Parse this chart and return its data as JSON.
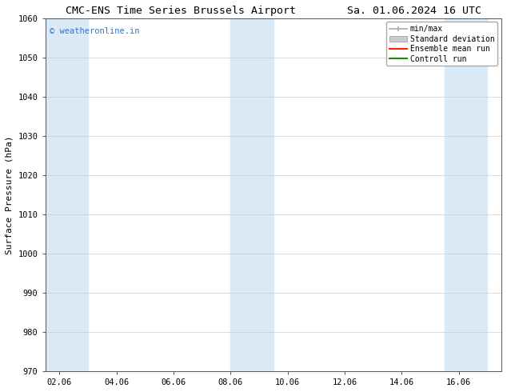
{
  "title_left": "CMC-ENS Time Series Brussels Airport",
  "title_right": "Sa. 01.06.2024 16 UTC",
  "ylabel": "Surface Pressure (hPa)",
  "ylim": [
    970,
    1060
  ],
  "yticks": [
    970,
    980,
    990,
    1000,
    1010,
    1020,
    1030,
    1040,
    1050,
    1060
  ],
  "xtick_labels": [
    "02.06",
    "04.06",
    "06.06",
    "08.06",
    "10.06",
    "12.06",
    "14.06",
    "16.06"
  ],
  "xtick_positions": [
    0,
    2,
    4,
    6,
    8,
    10,
    12,
    14
  ],
  "shaded_bands": [
    {
      "x_start": -0.5,
      "x_end": 1.0,
      "color": "#daeaf7"
    },
    {
      "x_start": 6.0,
      "x_end": 7.5,
      "color": "#daeaf7"
    },
    {
      "x_start": 13.5,
      "x_end": 15.0,
      "color": "#daeaf7"
    }
  ],
  "watermark_text": "© weatheronline.in",
  "watermark_color": "#3377bb",
  "background_color": "#ffffff",
  "plot_bg_color": "#ffffff",
  "legend_labels": [
    "min/max",
    "Standard deviation",
    "Ensemble mean run",
    "Controll run"
  ],
  "legend_colors_line": [
    "#aaaaaa",
    "#bbbbbb",
    "#ff0000",
    "#008800"
  ],
  "title_fontsize": 9.5,
  "axis_label_fontsize": 8,
  "tick_fontsize": 7.5,
  "x_total_min": -0.5,
  "x_total_max": 15.5
}
